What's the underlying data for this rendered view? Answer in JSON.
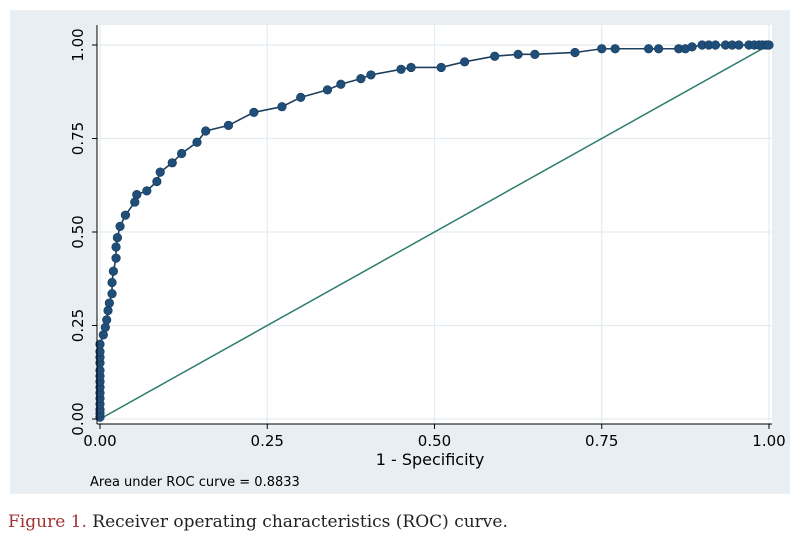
{
  "caption": {
    "label": "Figure 1.",
    "text": " Receiver operating characteristics (ROC) curve."
  },
  "colors": {
    "panel_bg": "#e8eef1",
    "plot_bg": "#ffffff",
    "grid": "#e3ecf0",
    "roc_line": "#1f3f5f",
    "roc_marker": "#1f4e79",
    "reference_line": "#2e7d6e",
    "caption_label": "#a23333"
  },
  "chart_data": {
    "type": "line",
    "xlabel": "1 - Specificity",
    "ylabel": "",
    "xlim": [
      0,
      1
    ],
    "ylim": [
      0,
      1
    ],
    "x_ticks": [
      "0.00",
      "0.25",
      "0.50",
      "0.75",
      "1.00"
    ],
    "y_ticks": [
      "0.00",
      "0.25",
      "0.50",
      "0.75",
      "1.00"
    ],
    "grid": true,
    "annotation": "Area under ROC curve = 0.8833",
    "series": [
      {
        "marker": "circle",
        "points": [
          [
            0,
            0.005
          ],
          [
            0,
            0.015
          ],
          [
            0,
            0.025
          ],
          [
            0,
            0.04
          ],
          [
            0,
            0.055
          ],
          [
            0,
            0.07
          ],
          [
            0,
            0.085
          ],
          [
            0,
            0.1
          ],
          [
            0,
            0.115
          ],
          [
            0,
            0.13
          ],
          [
            0,
            0.15
          ],
          [
            0,
            0.165
          ],
          [
            0,
            0.18
          ],
          [
            0,
            0.2
          ],
          [
            0.005,
            0.225
          ],
          [
            0.008,
            0.245
          ],
          [
            0.01,
            0.265
          ],
          [
            0.012,
            0.29
          ],
          [
            0.014,
            0.31
          ],
          [
            0.018,
            0.335
          ],
          [
            0.018,
            0.365
          ],
          [
            0.02,
            0.395
          ],
          [
            0.024,
            0.43
          ],
          [
            0.024,
            0.46
          ],
          [
            0.026,
            0.485
          ],
          [
            0.03,
            0.515
          ],
          [
            0.038,
            0.545
          ],
          [
            0.052,
            0.58
          ],
          [
            0.055,
            0.6
          ],
          [
            0.07,
            0.61
          ],
          [
            0.085,
            0.635
          ],
          [
            0.09,
            0.66
          ],
          [
            0.108,
            0.685
          ],
          [
            0.122,
            0.71
          ],
          [
            0.145,
            0.74
          ],
          [
            0.158,
            0.77
          ],
          [
            0.192,
            0.785
          ],
          [
            0.23,
            0.82
          ],
          [
            0.272,
            0.835
          ],
          [
            0.3,
            0.86
          ],
          [
            0.34,
            0.88
          ],
          [
            0.36,
            0.895
          ],
          [
            0.39,
            0.91
          ],
          [
            0.405,
            0.92
          ],
          [
            0.45,
            0.935
          ],
          [
            0.465,
            0.94
          ],
          [
            0.51,
            0.94
          ],
          [
            0.545,
            0.955
          ],
          [
            0.59,
            0.97
          ],
          [
            0.625,
            0.975
          ],
          [
            0.65,
            0.975
          ],
          [
            0.71,
            0.98
          ],
          [
            0.75,
            0.99
          ],
          [
            0.77,
            0.99
          ],
          [
            0.82,
            0.99
          ],
          [
            0.835,
            0.99
          ],
          [
            0.865,
            0.99
          ],
          [
            0.875,
            0.99
          ],
          [
            0.885,
            0.995
          ],
          [
            0.9,
            1.0
          ],
          [
            0.91,
            1.0
          ],
          [
            0.92,
            1.0
          ],
          [
            0.935,
            1.0
          ],
          [
            0.945,
            1.0
          ],
          [
            0.955,
            1.0
          ],
          [
            0.97,
            1.0
          ],
          [
            0.978,
            1.0
          ],
          [
            0.985,
            1.0
          ],
          [
            0.99,
            1.0
          ],
          [
            0.996,
            1.0
          ],
          [
            1.0,
            1.0
          ]
        ]
      },
      {
        "style": "reference-diagonal",
        "points": [
          [
            0,
            0
          ],
          [
            1,
            1
          ]
        ]
      }
    ]
  }
}
